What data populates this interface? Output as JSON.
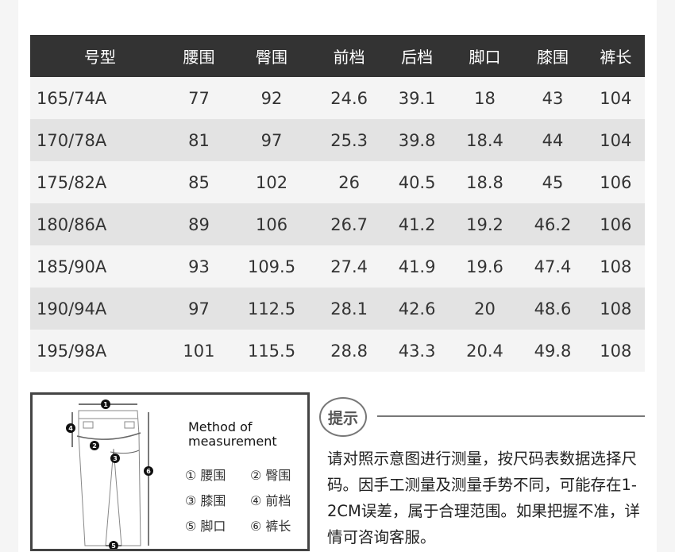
{
  "table": {
    "headers": [
      "号型",
      "腰围",
      "臀围",
      "前档",
      "后档",
      "脚口",
      "膝围",
      "裤长"
    ],
    "rows": [
      [
        "165/74A",
        "77",
        "92",
        "24.6",
        "39.1",
        "18",
        "43",
        "104"
      ],
      [
        "170/78A",
        "81",
        "97",
        "25.3",
        "39.8",
        "18.4",
        "44",
        "104"
      ],
      [
        "175/82A",
        "85",
        "102",
        "26",
        "40.5",
        "18.8",
        "45",
        "106"
      ],
      [
        "180/86A",
        "89",
        "106",
        "26.7",
        "41.2",
        "19.2",
        "46.2",
        "106"
      ],
      [
        "185/90A",
        "93",
        "109.5",
        "27.4",
        "41.9",
        "19.6",
        "47.4",
        "108"
      ],
      [
        "190/94A",
        "97",
        "112.5",
        "28.1",
        "42.6",
        "20",
        "48.6",
        "108"
      ],
      [
        "195/98A",
        "101",
        "115.5",
        "28.8",
        "43.3",
        "20.4",
        "49.8",
        "108"
      ]
    ]
  },
  "diagram": {
    "title_line1": "Method of",
    "title_line2": "measurement",
    "legend": [
      "① 腰围",
      "② 臀围",
      "③ 膝围",
      "④ 前档",
      "⑤ 脚口",
      "⑥ 裤长"
    ],
    "markers": [
      "1",
      "2",
      "3",
      "4",
      "5",
      "6"
    ]
  },
  "tip": {
    "label": "提示",
    "text": "请对照示意图进行测量，按尺码表数据选择尺码。因手工测量及测量手势不同，可能存在1-2CM误差，属于合理范围。如果把握不准，详情可咨询客服。"
  }
}
